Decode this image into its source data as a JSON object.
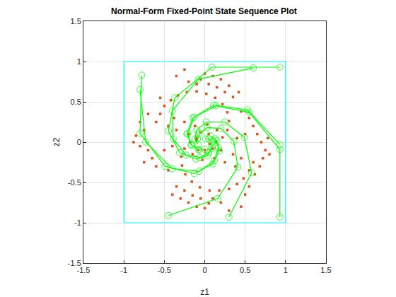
{
  "chart_data": {
    "type": "scatter",
    "title": "Normal-Form Fixed-Point State Sequence Plot",
    "x_label": "z1",
    "y_label": "z2",
    "xlim": [
      -1.5,
      1.5
    ],
    "ylim": [
      -1.5,
      1.5
    ],
    "xticks": [
      -1.5,
      -1,
      -0.5,
      0,
      0.5,
      1,
      1.5
    ],
    "yticks": [
      -1.5,
      -1,
      -0.5,
      0,
      0.5,
      1,
      1.5
    ],
    "grid": true,
    "series": [
      {
        "type": "scatter",
        "color": "#d95319",
        "marker": "square",
        "x": [
          -0.6,
          -0.55,
          -0.5,
          -0.42,
          -0.33,
          -0.22,
          -0.1,
          0.02,
          0.13,
          0.22,
          0.28,
          0.3,
          0.28,
          0.22,
          0.14,
          0.06,
          0.6,
          0.55,
          0.48,
          0.4,
          0.3,
          0.18,
          0.06,
          -0.06,
          -0.16,
          -0.24,
          -0.28,
          -0.29,
          -0.25,
          -0.18,
          -0.1,
          -0.3,
          -0.2,
          -0.1,
          0.0,
          0.05,
          -0.15,
          -0.25,
          -0.35,
          -0.4,
          0.1,
          0.2,
          -0.05,
          0.3,
          0.2,
          0.1,
          0.0,
          -0.05,
          0.15,
          0.25,
          0.35,
          0.42,
          -0.1,
          -0.2,
          0.05,
          -0.88,
          -0.85,
          -0.8,
          -0.75,
          -0.7,
          -0.65,
          -0.6,
          -0.75,
          -0.8,
          -0.7,
          0.65,
          0.7,
          0.75,
          0.72,
          0.6,
          0.55,
          0.68,
          0.8,
          0.78,
          0.62,
          0.55,
          0.05,
          -0.05,
          -0.1,
          0.1,
          0.0,
          -0.08,
          0.15,
          -0.15,
          0.12,
          -0.12,
          0.2,
          -0.2,
          0.03,
          -0.03,
          0.25,
          -0.25,
          0.35,
          -0.35,
          0.4,
          -0.4,
          0.38,
          -0.38,
          0.45,
          -0.45,
          -0.5,
          0.5,
          -0.45,
          0.45,
          -0.55,
          0.5,
          0.3,
          -0.35,
          -0.25,
          0.45
        ],
        "y": [
          0.25,
          0.35,
          0.45,
          0.52,
          0.58,
          0.62,
          0.63,
          0.6,
          0.55,
          0.47,
          0.37,
          0.26,
          0.15,
          0.06,
          0.0,
          -0.02,
          -0.25,
          -0.35,
          -0.45,
          -0.52,
          -0.58,
          -0.6,
          -0.6,
          -0.56,
          -0.49,
          -0.4,
          -0.29,
          -0.18,
          -0.08,
          0.0,
          0.03,
          -0.7,
          -0.75,
          -0.8,
          -0.82,
          -0.76,
          -0.66,
          -0.6,
          -0.55,
          -0.65,
          -0.7,
          -0.75,
          -0.7,
          0.7,
          0.78,
          0.82,
          0.85,
          0.78,
          0.68,
          0.62,
          0.56,
          0.62,
          0.72,
          0.75,
          0.72,
          0.0,
          0.08,
          -0.05,
          0.15,
          -0.1,
          -0.2,
          -0.3,
          -0.25,
          0.25,
          0.35,
          0.1,
          0.0,
          -0.1,
          -0.2,
          0.2,
          0.3,
          -0.3,
          -0.15,
          0.05,
          -0.4,
          -0.55,
          0.1,
          0.12,
          0.05,
          -0.08,
          -0.1,
          -0.1,
          0.15,
          -0.15,
          -0.2,
          0.2,
          -0.1,
          0.1,
          0.22,
          -0.22,
          -0.25,
          0.25,
          -0.15,
          0.15,
          0.05,
          -0.05,
          -0.3,
          0.3,
          -0.2,
          0.2,
          -0.1,
          0.1,
          -0.35,
          0.38,
          0.55,
          -0.65,
          -0.85,
          0.82,
          0.9,
          -0.8
        ]
      },
      {
        "type": "line",
        "color": "#00ff00",
        "marker": "circle-open",
        "x": [
          0.93,
          0.09,
          -0.37,
          -0.45,
          -0.31,
          -0.11,
          0.03,
          0.09,
          0.09,
          0.05,
          0.01
        ],
        "y": [
          0.93,
          0.93,
          0.55,
          0.14,
          -0.13,
          -0.21,
          -0.17,
          -0.08,
          0.0,
          0.04,
          0.04
        ]
      },
      {
        "type": "line",
        "color": "#00ff00",
        "marker": "circle-open",
        "x": [
          0.93,
          0.93,
          0.55,
          0.14,
          -0.13,
          -0.21,
          -0.17,
          -0.08,
          0.0
        ],
        "y": [
          -0.93,
          -0.09,
          0.37,
          0.45,
          0.31,
          0.11,
          -0.03,
          -0.09,
          -0.09
        ]
      },
      {
        "type": "line",
        "color": "#00ff00",
        "marker": "circle-open",
        "x": [
          -0.45,
          0.16,
          0.41,
          0.36,
          0.2,
          0.03,
          -0.06,
          -0.09
        ],
        "y": [
          -0.91,
          -0.7,
          -0.31,
          0.01,
          0.17,
          0.18,
          0.11,
          0.04
        ]
      },
      {
        "type": "line",
        "color": "#00ff00",
        "marker": "circle-open",
        "x": [
          -0.78,
          -0.8,
          -0.49,
          -0.13,
          0.1,
          0.18,
          0.15,
          0.07
        ],
        "y": [
          0.83,
          0.11,
          -0.3,
          -0.39,
          -0.27,
          -0.11,
          0.02,
          0.08
        ]
      },
      {
        "type": "line",
        "color": "#00ff00",
        "marker": "circle-open",
        "x": [
          0.3,
          0.58,
          0.49,
          0.25,
          0.02,
          -0.1,
          -0.12,
          -0.08
        ],
        "y": [
          -0.93,
          -0.38,
          0.06,
          0.25,
          0.25,
          0.15,
          0.04,
          -0.03
        ]
      },
      {
        "type": "line",
        "color": "#00ff00",
        "marker": "circle-open",
        "x": [
          0.6,
          -0.08,
          -0.4,
          -0.39,
          -0.23,
          -0.06,
          0.05,
          0.09
        ],
        "y": [
          0.92,
          0.78,
          0.39,
          0.04,
          -0.16,
          -0.19,
          -0.13,
          -0.05
        ]
      },
      {
        "type": "line",
        "color": "#00ff00",
        "marker": "circle-open",
        "x": [
          -0.8,
          -0.73,
          -0.4,
          -0.07,
          0.12,
          0.17,
          0.13
        ],
        "y": [
          0.65,
          0.0,
          -0.33,
          -0.36,
          -0.23,
          -0.07,
          0.04
        ]
      },
      {
        "type": "line",
        "color": "#00ff00",
        "marker": "circle-open",
        "x": [
          0.93,
          0.53,
          0.11,
          -0.15,
          -0.22,
          -0.16,
          -0.07
        ],
        "y": [
          -0.03,
          0.4,
          0.46,
          0.3,
          0.1,
          -0.04,
          -0.1
        ]
      },
      {
        "type": "line",
        "color": "#00ffff",
        "marker": "none",
        "x": [
          -1,
          1,
          1,
          -1,
          -1
        ],
        "y": [
          -1,
          -1,
          1,
          1,
          -1
        ]
      }
    ]
  }
}
